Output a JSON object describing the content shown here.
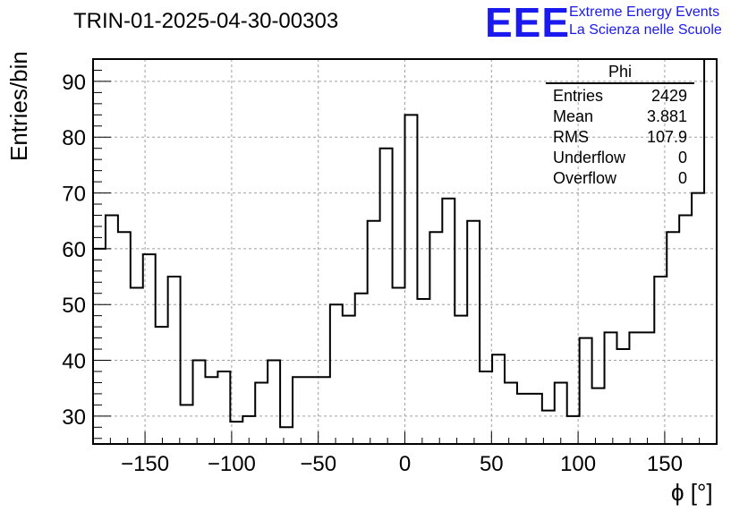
{
  "header": {
    "title": "TRIN-01-2025-04-30-00303",
    "logo": "EEE",
    "logo_line1": "Extreme Energy Events",
    "logo_line2": "La Scienza nelle Scuole"
  },
  "stats": {
    "name": "Phi",
    "rows": [
      {
        "label": "Entries",
        "value": "2429"
      },
      {
        "label": "Mean",
        "value": "3.881"
      },
      {
        "label": "RMS",
        "value": "107.9"
      },
      {
        "label": "Underflow",
        "value": "0"
      },
      {
        "label": "Overflow",
        "value": "0"
      }
    ]
  },
  "chart_data": {
    "type": "histogram",
    "title": "TRIN-01-2025-04-30-00303",
    "xlabel": "ϕ [°]",
    "ylabel": "Entries/bin",
    "xlim": [
      -180,
      180
    ],
    "ylim": [
      25,
      94
    ],
    "grid": true,
    "bin_edges_start": -180,
    "bin_width": 7.2,
    "values": [
      60,
      66,
      63,
      53,
      59,
      46,
      55,
      32,
      40,
      37,
      38,
      29,
      30,
      36,
      40,
      28,
      37,
      37,
      37,
      50,
      48,
      52,
      65,
      78,
      53,
      84,
      51,
      63,
      69,
      48,
      65,
      38,
      41,
      36,
      34,
      34,
      31,
      36,
      30,
      44,
      35,
      45,
      42,
      45,
      45,
      55,
      63,
      66,
      70,
      94
    ],
    "xticks": [
      -150,
      -100,
      -50,
      0,
      50,
      100,
      150
    ],
    "xtick_labels": [
      "−150",
      "−100",
      "−50",
      "0",
      "50",
      "100",
      "150"
    ],
    "yticks": [
      30,
      40,
      50,
      60,
      70,
      80,
      90
    ],
    "ytick_labels": [
      "30",
      "40",
      "50",
      "60",
      "70",
      "80",
      "90"
    ]
  }
}
